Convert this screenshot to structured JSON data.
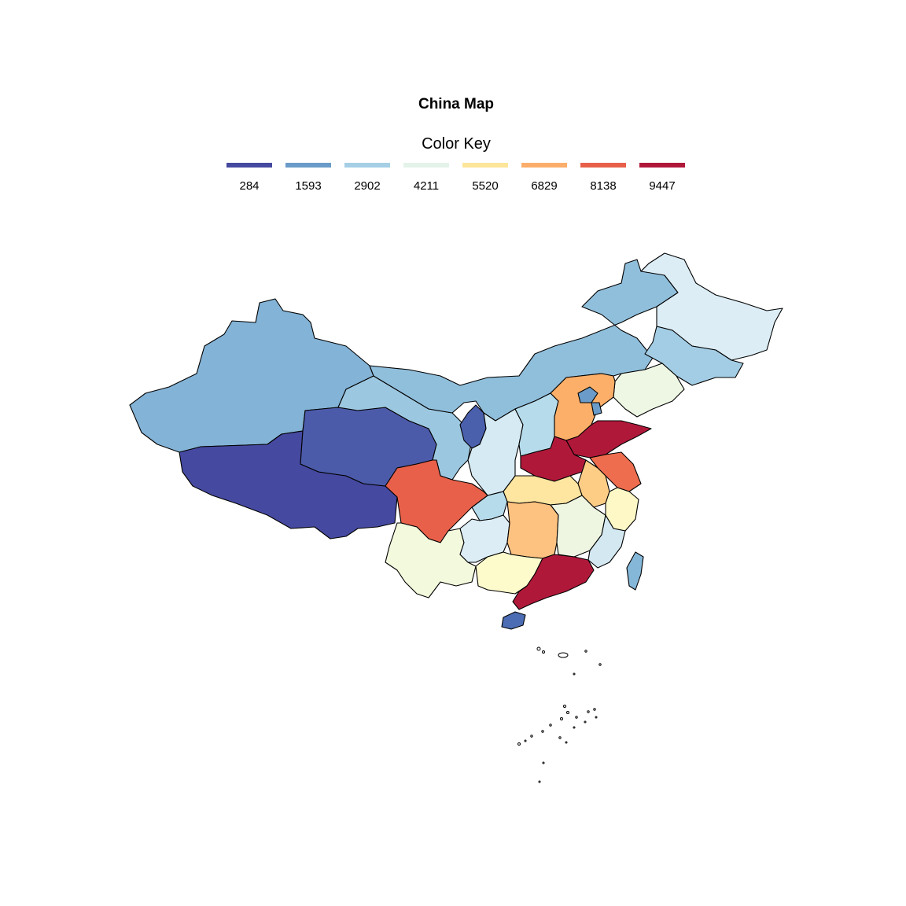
{
  "map": {
    "title": "China Map",
    "color_key": {
      "title": "Color Key",
      "entries": [
        {
          "label": "284",
          "color": "#4549a0"
        },
        {
          "label": "1593",
          "color": "#6b9bc8"
        },
        {
          "label": "2902",
          "color": "#a6cfe5"
        },
        {
          "label": "4211",
          "color": "#e4f3ea"
        },
        {
          "label": "5520",
          "color": "#fde59a"
        },
        {
          "label": "6829",
          "color": "#fbae6b"
        },
        {
          "label": "8138",
          "color": "#e8604a"
        },
        {
          "label": "9447",
          "color": "#b0183a"
        }
      ]
    },
    "background": "#ffffff",
    "border_color": "#000000"
  }
}
